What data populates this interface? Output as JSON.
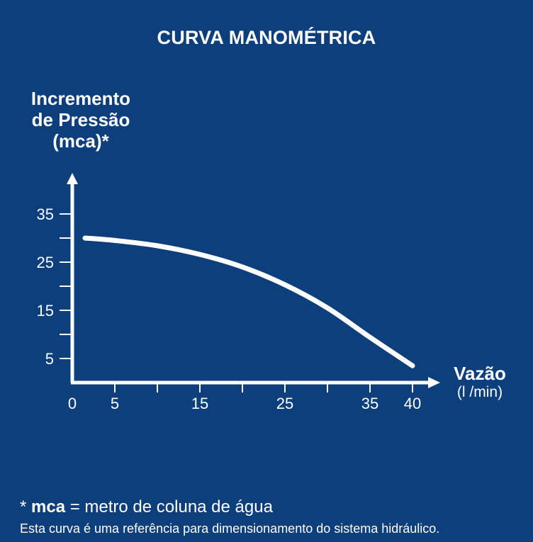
{
  "chart_data": {
    "type": "line",
    "title": "CURVA MANOMÉTRICA",
    "ylabel_lines": [
      "Incremento",
      "de Pressão",
      "(mca)*"
    ],
    "xlabel": "Vazão",
    "xunit": "(l /min)",
    "xlim": [
      0,
      40
    ],
    "ylim": [
      0,
      40
    ],
    "x_ticks": [
      0,
      5,
      10,
      15,
      20,
      25,
      30,
      35,
      40
    ],
    "x_tick_labels": [
      {
        "value": 0,
        "label": "0"
      },
      {
        "value": 5,
        "label": "5"
      },
      {
        "value": 15,
        "label": "15"
      },
      {
        "value": 25,
        "label": "25"
      },
      {
        "value": 35,
        "label": "35"
      },
      {
        "value": 40,
        "label": "40"
      }
    ],
    "y_ticks": [
      5,
      10,
      15,
      20,
      25,
      30,
      35
    ],
    "y_tick_labels": [
      {
        "value": 5,
        "label": "5"
      },
      {
        "value": 15,
        "label": "15"
      },
      {
        "value": 25,
        "label": "25"
      },
      {
        "value": 35,
        "label": "35"
      }
    ],
    "series": [
      {
        "points": [
          {
            "x": 1.5,
            "y": 30.0
          },
          {
            "x": 5,
            "y": 29.5
          },
          {
            "x": 10,
            "y": 28.4
          },
          {
            "x": 15,
            "y": 26.6
          },
          {
            "x": 20,
            "y": 24.0
          },
          {
            "x": 25,
            "y": 20.3
          },
          {
            "x": 30,
            "y": 15.5
          },
          {
            "x": 35,
            "y": 9.4
          },
          {
            "x": 40,
            "y": 3.5
          }
        ]
      }
    ],
    "grid": false,
    "colors": {
      "background": "#0d3f7c",
      "foreground": "#ffffff"
    }
  },
  "footnote": {
    "star": "* ",
    "bold": "mca",
    "rest": " = metro de coluna de água"
  },
  "note": "Esta curva é uma referência para dimensionamento do sistema hidráulico."
}
